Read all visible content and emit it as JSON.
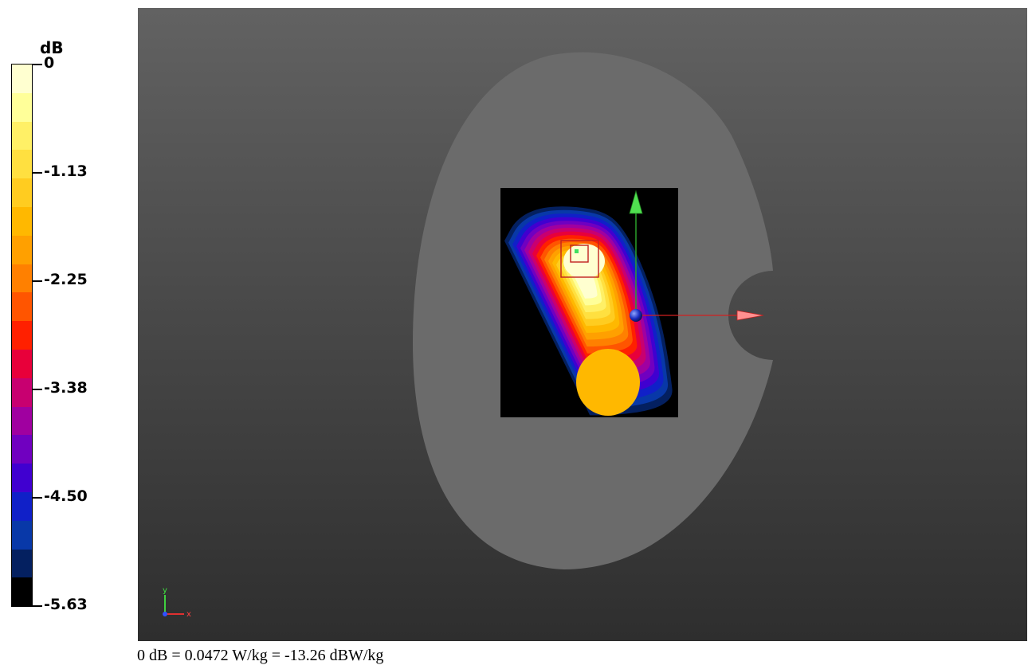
{
  "chart_data": {
    "type": "heatmap",
    "colorbar": {
      "unit": "dB",
      "range": [
        -5.63,
        0
      ],
      "tick_labels": [
        "0",
        "-1.13",
        "-2.25",
        "-3.38",
        "-4.50",
        "-5.63"
      ],
      "tick_values": [
        0,
        -1.13,
        -2.25,
        -3.38,
        -4.5,
        -5.63
      ],
      "colors_top_to_bottom": [
        "#ffffd0",
        "#ffff99",
        "#fff066",
        "#ffe040",
        "#ffcc20",
        "#ffb800",
        "#ffa000",
        "#ff8000",
        "#ff5500",
        "#ff2000",
        "#e8003a",
        "#c80070",
        "#a000a0",
        "#7000c0",
        "#4000d0",
        "#1020c8",
        "#0838a8",
        "#042060",
        "#000000"
      ]
    },
    "axes_triad": {
      "x_label": "x",
      "y_label": "y"
    },
    "caption": "0 dB = 0.0472 W/kg = -13.26 dBW/kg"
  }
}
